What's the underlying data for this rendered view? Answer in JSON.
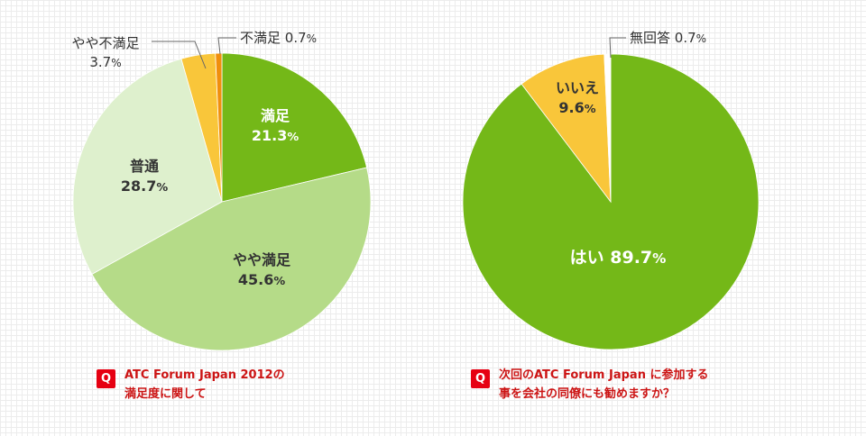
{
  "chart_data": [
    {
      "type": "pie",
      "slices": [
        {
          "label": "満足",
          "value": 21.3,
          "value_text": "21.3",
          "color": "#74b818"
        },
        {
          "label": "やや満足",
          "value": 45.6,
          "value_text": "45.6",
          "color": "#b5db88"
        },
        {
          "label": "普通",
          "value": 28.7,
          "value_text": "28.7",
          "color": "#def0cd"
        },
        {
          "label": "やや不満足",
          "value": 3.7,
          "value_text": "3.7",
          "color": "#f9c63a"
        },
        {
          "label": "不満足",
          "value": 0.7,
          "value_text": "0.7",
          "color": "#f08f0c"
        }
      ],
      "unit": "%",
      "question_badge": "Q",
      "question": "ATC Forum Japan 2012の\n満足度に関して"
    },
    {
      "type": "pie",
      "slices": [
        {
          "label": "はい",
          "value": 89.7,
          "value_text": "89.7",
          "color": "#74b818"
        },
        {
          "label": "いいえ",
          "value": 9.6,
          "value_text": "9.6",
          "color": "#f9c63a"
        },
        {
          "label": "無回答",
          "value": 0.7,
          "value_text": "0.7",
          "color": "#ffffff"
        }
      ],
      "unit": "%",
      "question_badge": "Q",
      "question": "次回のATC Forum Japan に参加する\n事を会社の同僚にも勧めますか？"
    }
  ]
}
